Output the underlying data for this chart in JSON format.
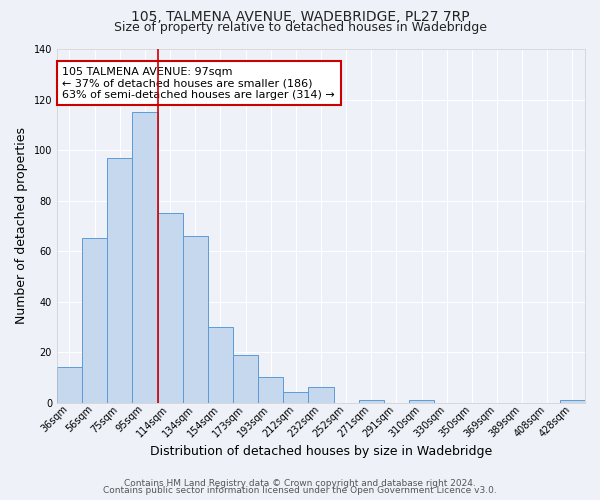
{
  "title": "105, TALMENA AVENUE, WADEBRIDGE, PL27 7RP",
  "subtitle": "Size of property relative to detached houses in Wadebridge",
  "xlabel": "Distribution of detached houses by size in Wadebridge",
  "ylabel": "Number of detached properties",
  "bar_labels": [
    "36sqm",
    "56sqm",
    "75sqm",
    "95sqm",
    "114sqm",
    "134sqm",
    "154sqm",
    "173sqm",
    "193sqm",
    "212sqm",
    "232sqm",
    "252sqm",
    "271sqm",
    "291sqm",
    "310sqm",
    "330sqm",
    "350sqm",
    "369sqm",
    "389sqm",
    "408sqm",
    "428sqm"
  ],
  "bar_values": [
    14,
    65,
    97,
    115,
    75,
    66,
    30,
    19,
    10,
    4,
    6,
    0,
    1,
    0,
    1,
    0,
    0,
    0,
    0,
    0,
    1
  ],
  "bar_color": "#c5d8ed",
  "bar_edge_color": "#5b9bd5",
  "vline_x": 3.5,
  "vline_color": "#cc0000",
  "annotation_text": "105 TALMENA AVENUE: 97sqm\n← 37% of detached houses are smaller (186)\n63% of semi-detached houses are larger (314) →",
  "annotation_box_color": "#ffffff",
  "annotation_box_edge_color": "#cc0000",
  "ylim": [
    0,
    140
  ],
  "yticks": [
    0,
    20,
    40,
    60,
    80,
    100,
    120,
    140
  ],
  "footer_line1": "Contains HM Land Registry data © Crown copyright and database right 2024.",
  "footer_line2": "Contains public sector information licensed under the Open Government Licence v3.0.",
  "bg_color": "#eef2f8",
  "plot_bg_color": "#eef2f8",
  "grid_color": "#ffffff",
  "title_fontsize": 10,
  "subtitle_fontsize": 9,
  "axis_label_fontsize": 9,
  "tick_fontsize": 7,
  "annotation_fontsize": 8,
  "footer_fontsize": 6.5
}
